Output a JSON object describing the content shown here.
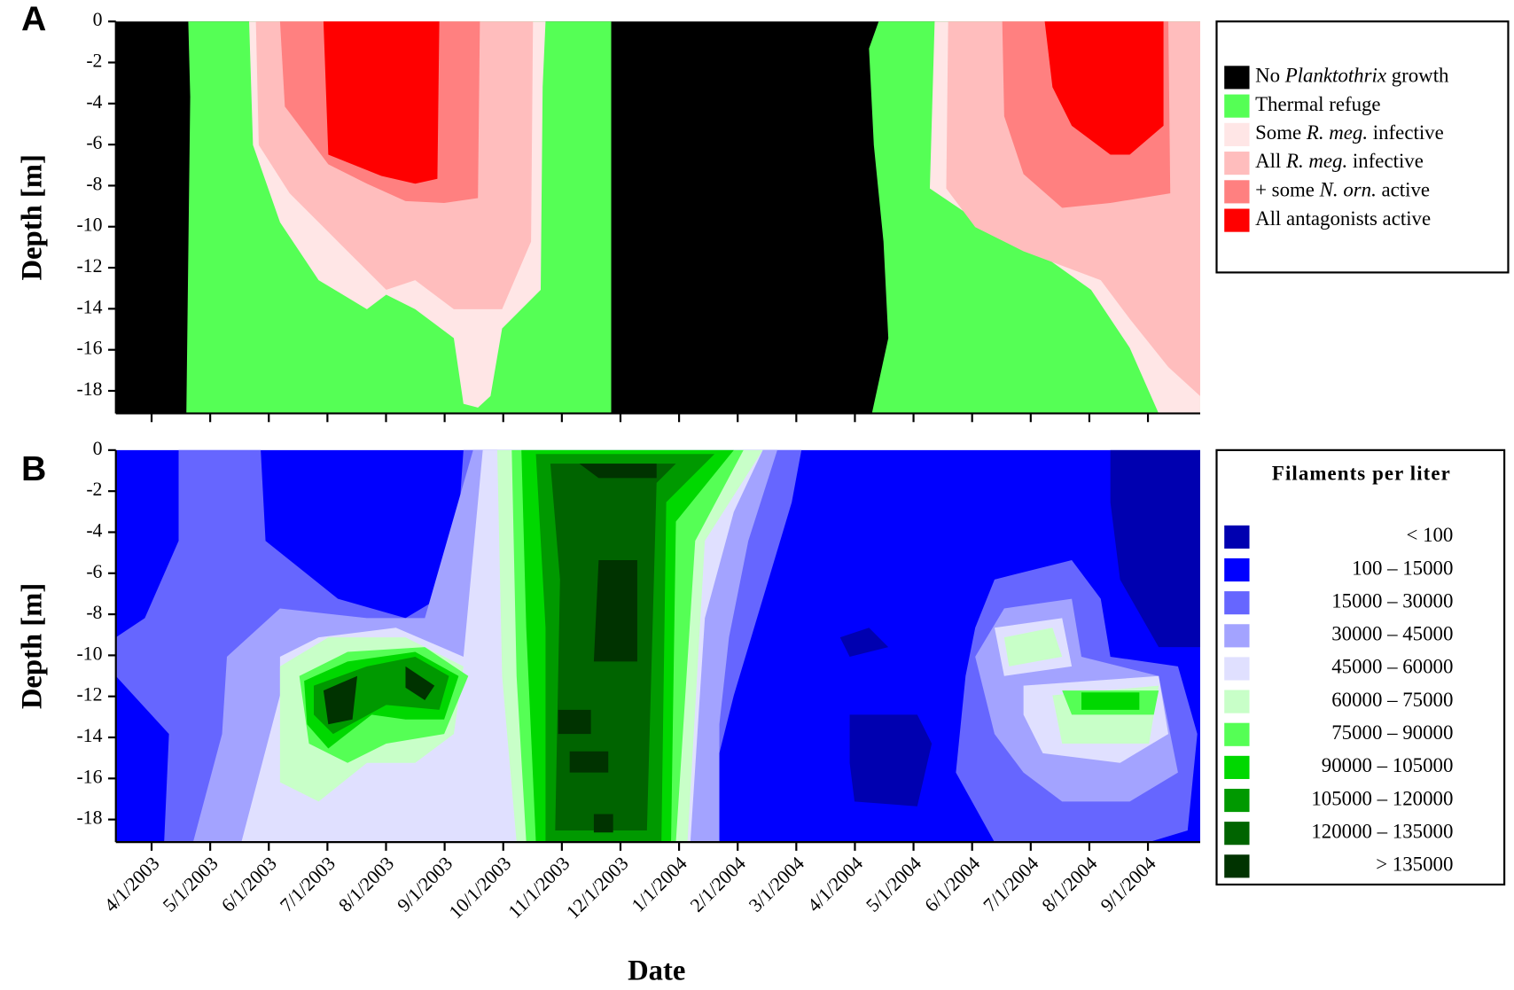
{
  "chart_data": [
    {
      "type": "contour",
      "panel_label": "A",
      "y_label": "Depth [m]",
      "ylim": [
        0,
        -19.1
      ],
      "yticks": [
        0,
        -2,
        -4,
        -6,
        -8,
        -10,
        -12,
        -14,
        -16,
        -18
      ],
      "levels": [
        {
          "name": "No Planktothrix growth",
          "italic": "Planktothrix",
          "color": "#000000"
        },
        {
          "name": "Thermal refuge",
          "color": "#55ff55"
        },
        {
          "name": "Some R. meg. infective",
          "italic": "R. meg.",
          "color": "#ffe6e6"
        },
        {
          "name": "All R. meg. infective",
          "italic": "R. meg.",
          "color": "#ffbdbd"
        },
        {
          "name": "+ some N. orn. active",
          "italic": "N. orn.",
          "color": "#ff8080"
        },
        {
          "name": "All antagonists active",
          "color": "#ff0000"
        }
      ]
    },
    {
      "type": "contour",
      "panel_label": "B",
      "y_label": "Depth [m]",
      "x_label": "Date",
      "xticks": [
        "4/1/2003",
        "5/1/2003",
        "6/1/2003",
        "7/1/2003",
        "8/1/2003",
        "9/1/2003",
        "10/1/2003",
        "11/1/2003",
        "12/1/2003",
        "1/1/2004",
        "2/1/2004",
        "3/1/2004",
        "4/1/2004",
        "5/1/2004",
        "6/1/2004",
        "7/1/2004",
        "8/1/2004",
        "9/1/2004"
      ],
      "ylim": [
        0,
        -19.1
      ],
      "yticks": [
        0,
        -2,
        -4,
        -6,
        -8,
        -10,
        -12,
        -14,
        -16,
        -18
      ],
      "legend_title": "Filaments per liter",
      "levels": [
        {
          "name": "< 100",
          "color": "#0000b0"
        },
        {
          "name": "100 – 15000",
          "color": "#0000ff"
        },
        {
          "name": "15000 – 30000",
          "color": "#6666ff"
        },
        {
          "name": "30000 – 45000",
          "color": "#a3a3ff"
        },
        {
          "name": "45000 – 60000",
          "color": "#e0e0ff"
        },
        {
          "name": "60000 – 75000",
          "color": "#c8ffc8"
        },
        {
          "name": "75000 – 90000",
          "color": "#55ff55"
        },
        {
          "name": "90000 – 105000",
          "color": "#00d800"
        },
        {
          "name": "105000 – 120000",
          "color": "#009900"
        },
        {
          "name": "120000 – 135000",
          "color": "#006400"
        },
        {
          "name": "> 135000",
          "color": "#003300"
        }
      ]
    }
  ]
}
